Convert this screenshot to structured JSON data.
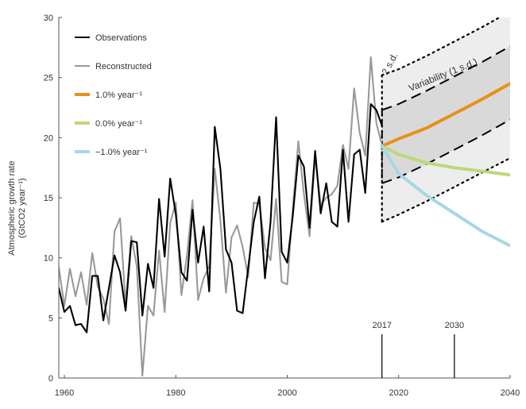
{
  "chart_data": {
    "type": "line",
    "ylabel": "Atmospheric growth rate",
    "ylabel_units": "(GtCO2 year⁻¹)",
    "xlim": [
      1959,
      2040
    ],
    "ylim": [
      0,
      30
    ],
    "x_ticks": [
      "1960",
      "1980",
      "2000",
      "2020",
      "2040"
    ],
    "y_ticks": [
      "0",
      "5",
      "10",
      "15",
      "20",
      "25",
      "30"
    ],
    "grid": false,
    "legend_position": "top-left",
    "legend": [
      {
        "label": "Observations",
        "color": "#000000"
      },
      {
        "label": "Reconstructed",
        "color": "#999999"
      },
      {
        "label": "1.0% year⁻¹",
        "color": "#E8901A"
      },
      {
        "label": "0.0% year⁻¹",
        "color": "#BFD77A"
      },
      {
        "label": "−1.0% year⁻¹",
        "color": "#A6D7E6"
      }
    ],
    "annotations": {
      "band_2sd": "2 s.d.",
      "band_1sd": "Variability (1 s.d.)",
      "marker_2017": "2017",
      "marker_2030": "2030"
    },
    "series": [
      {
        "name": "Observations",
        "color": "#000000",
        "x": [
          1959,
          1960,
          1961,
          1962,
          1963,
          1964,
          1965,
          1966,
          1967,
          1968,
          1969,
          1970,
          1971,
          1972,
          1973,
          1974,
          1975,
          1976,
          1977,
          1978,
          1979,
          1980,
          1981,
          1982,
          1983,
          1984,
          1985,
          1986,
          1987,
          1988,
          1989,
          1990,
          1991,
          1992,
          1993,
          1994,
          1995,
          1996,
          1997,
          1998,
          1999,
          2000,
          2001,
          2002,
          2003,
          2004,
          2005,
          2006,
          2007,
          2008,
          2009,
          2010,
          2011,
          2012,
          2013,
          2014,
          2015,
          2016,
          2017
        ],
        "values": [
          7.5,
          5.5,
          6.0,
          4.4,
          4.5,
          3.8,
          8.5,
          8.5,
          4.8,
          7.5,
          10.2,
          8.8,
          5.6,
          11.4,
          11.3,
          5.2,
          9.5,
          7.5,
          14.9,
          10.1,
          16.6,
          13.6,
          8.8,
          8.1,
          14.0,
          9.6,
          12.6,
          7.2,
          20.9,
          17.4,
          10.7,
          9.6,
          5.6,
          5.4,
          9.2,
          13.0,
          15.1,
          8.3,
          13.0,
          21.7,
          10.5,
          9.6,
          13.5,
          18.5,
          17.6,
          12.5,
          18.9,
          13.7,
          16.2,
          13.0,
          12.6,
          19.0,
          13.0,
          18.6,
          19.0,
          15.4,
          22.8,
          22.3,
          21.0
        ]
      },
      {
        "name": "Reconstructed",
        "color": "#999999",
        "x": [
          1959,
          1960,
          1961,
          1962,
          1963,
          1964,
          1965,
          1966,
          1967,
          1968,
          1969,
          1970,
          1971,
          1972,
          1973,
          1974,
          1975,
          1976,
          1977,
          1978,
          1979,
          1980,
          1981,
          1982,
          1983,
          1984,
          1985,
          1986,
          1987,
          1988,
          1989,
          1990,
          1991,
          1992,
          1993,
          1994,
          1995,
          1996,
          1997,
          1998,
          1999,
          2000,
          2001,
          2002,
          2003,
          2004,
          2005,
          2006,
          2007,
          2008,
          2009,
          2010,
          2011,
          2012,
          2013,
          2014,
          2015,
          2016,
          2017
        ],
        "values": [
          9.2,
          6.0,
          9.1,
          6.8,
          8.8,
          6.1,
          10.4,
          7.6,
          6.6,
          4.5,
          12.2,
          13.3,
          6.1,
          11.8,
          9.3,
          0.2,
          6.0,
          5.2,
          10.6,
          5.5,
          12.9,
          14.6,
          6.9,
          10.2,
          14.8,
          6.5,
          8.3,
          9.3,
          17.4,
          13.1,
          7.1,
          11.7,
          12.7,
          10.9,
          8.4,
          14.6,
          14.5,
          10.8,
          9.8,
          14.9,
          8.0,
          7.8,
          14.1,
          19.7,
          15.3,
          11.8,
          18.5,
          14.4,
          15.0,
          15.3,
          16.0,
          19.4,
          17.4,
          24.1,
          20.4,
          18.5,
          26.7,
          21.2,
          19.4
        ]
      },
      {
        "name": "1.0% year⁻¹",
        "color": "#E8901A",
        "x": [
          2017,
          2020,
          2025,
          2030,
          2035,
          2040
        ],
        "values": [
          19.3,
          19.9,
          20.8,
          22.0,
          23.2,
          24.5
        ]
      },
      {
        "name": "0.0% year⁻¹",
        "color": "#BFD77A",
        "x": [
          2017,
          2020,
          2025,
          2030,
          2035,
          2040
        ],
        "values": [
          19.3,
          18.6,
          17.9,
          17.5,
          17.2,
          16.9
        ]
      },
      {
        "name": "−1.0% year⁻¹",
        "color": "#A6D7E6",
        "x": [
          2017,
          2020,
          2025,
          2030,
          2035,
          2040
        ],
        "values": [
          19.3,
          17.0,
          15.2,
          13.7,
          12.2,
          11.0
        ]
      }
    ],
    "bands": {
      "two_sd": {
        "x": [
          2017,
          2020,
          2025,
          2030,
          2035,
          2040
        ],
        "upper": [
          25.2,
          25.7,
          26.8,
          28.0,
          29.2,
          30.5
        ],
        "lower": [
          13.0,
          13.6,
          14.7,
          15.9,
          17.1,
          18.3
        ]
      },
      "one_sd": {
        "x": [
          2017,
          2020,
          2025,
          2030,
          2035,
          2040
        ],
        "upper": [
          22.3,
          22.8,
          23.9,
          25.1,
          26.3,
          27.6
        ],
        "lower": [
          16.2,
          16.7,
          17.8,
          19.0,
          20.2,
          21.5
        ]
      }
    }
  }
}
